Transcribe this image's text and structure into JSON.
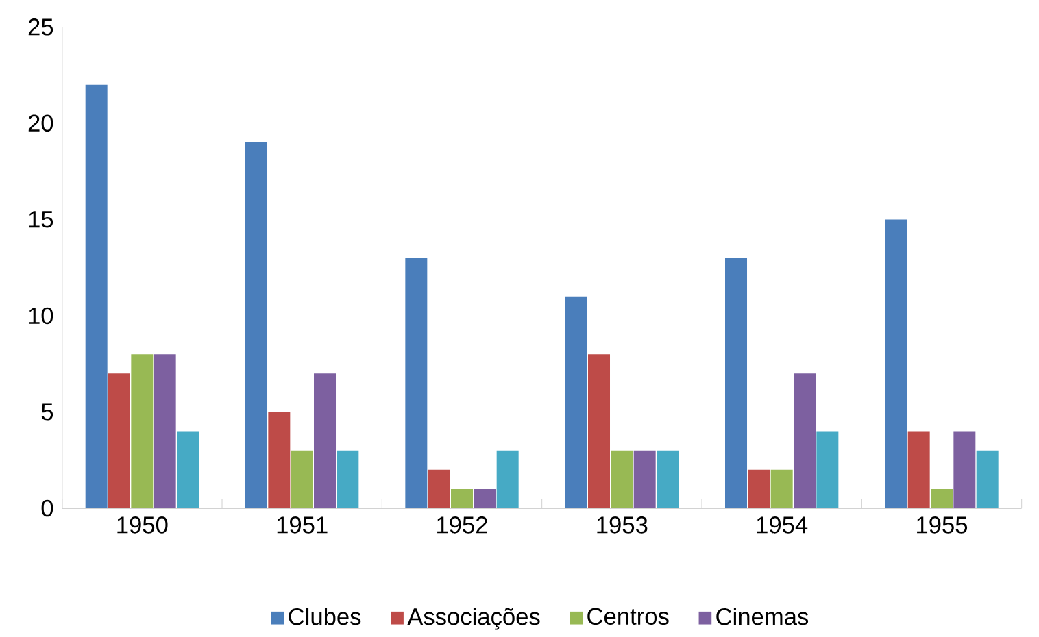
{
  "chart_data": {
    "type": "bar",
    "categories": [
      "1950",
      "1951",
      "1952",
      "1953",
      "1954",
      "1955"
    ],
    "series": [
      {
        "name": "Clubes",
        "color": "#4a7ebb",
        "values": [
          22,
          19,
          13,
          11,
          13,
          15
        ]
      },
      {
        "name": "Associações",
        "color": "#be4b48",
        "values": [
          7,
          5,
          2,
          8,
          2,
          4
        ]
      },
      {
        "name": "Centros",
        "color": "#98b954",
        "values": [
          8,
          3,
          1,
          3,
          2,
          1
        ]
      },
      {
        "name": "Cinemas",
        "color": "#7d60a0",
        "values": [
          8,
          7,
          1,
          3,
          7,
          4
        ]
      },
      {
        "color": "#46aac5",
        "values": [
          4,
          3,
          3,
          3,
          4,
          3
        ]
      }
    ],
    "ylim": [
      0,
      25
    ],
    "yticks": [
      0,
      5,
      10,
      15,
      20,
      25
    ],
    "legend": "bottom"
  }
}
